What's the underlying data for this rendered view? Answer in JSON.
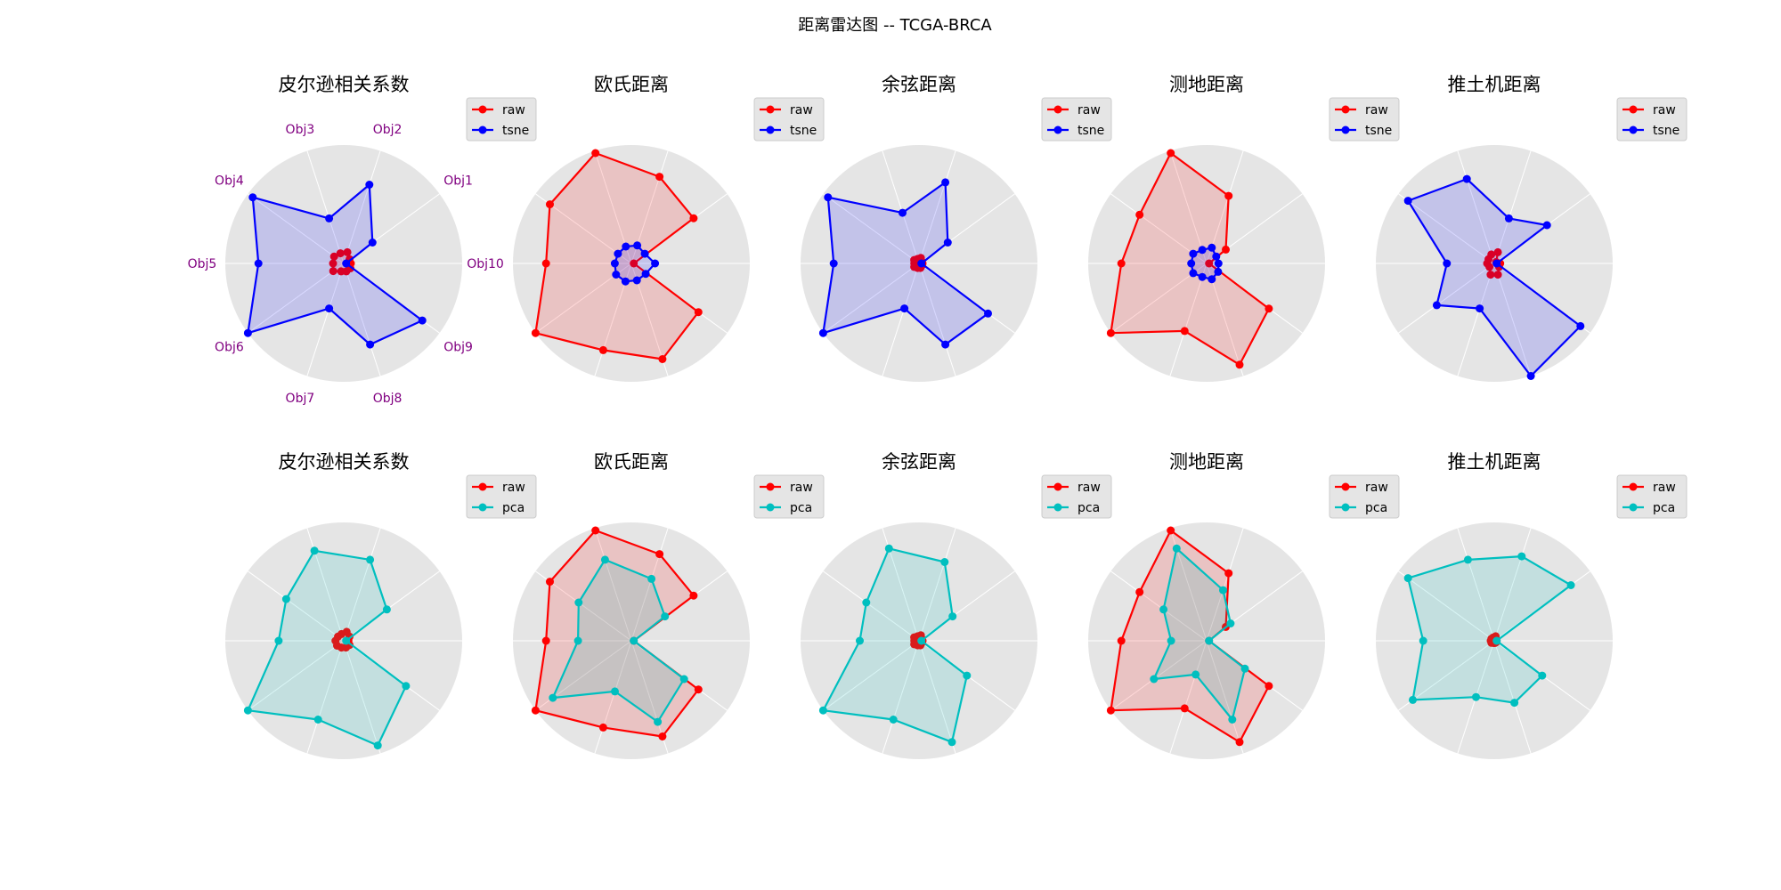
{
  "suptitle": "距离雷达图 -- TCGA-BRCA",
  "categories": [
    "Obj1",
    "Obj2",
    "Obj3",
    "Obj4",
    "Obj5",
    "Obj6",
    "Obj7",
    "Obj8",
    "Obj9",
    "Obj10"
  ],
  "colors": {
    "raw": "#ff0000",
    "tsne": "#0000ff",
    "pca": "#00bfbf",
    "polar_bg": "#e5e5e5",
    "grid": "#ffffff",
    "label": "#800080"
  },
  "chart_data": [
    {
      "type": "radar",
      "title": "皮尔逊相关系数",
      "show_category_labels": true,
      "rmax": 1.0,
      "series": [
        {
          "name": "raw",
          "color": "#ff0000",
          "values": [
            0.06,
            0.1,
            0.09,
            0.1,
            0.09,
            0.11,
            0.07,
            0.07,
            0.07,
            0.06
          ]
        },
        {
          "name": "tsne",
          "color": "#0000ff",
          "values": [
            0.3,
            0.7,
            0.4,
            0.95,
            0.72,
            1.0,
            0.4,
            0.72,
            0.82,
            0.02
          ]
        }
      ]
    },
    {
      "type": "radar",
      "title": "欧氏距离",
      "show_category_labels": false,
      "rmax": 1.0,
      "series": [
        {
          "name": "raw",
          "color": "#ff0000",
          "values": [
            0.65,
            0.77,
            0.98,
            0.85,
            0.72,
            1.0,
            0.77,
            0.85,
            0.7,
            0.02
          ]
        },
        {
          "name": "tsne",
          "color": "#0000ff",
          "values": [
            0.14,
            0.16,
            0.15,
            0.14,
            0.14,
            0.16,
            0.16,
            0.15,
            0.15,
            0.2
          ]
        }
      ]
    },
    {
      "type": "radar",
      "title": "余弦距离",
      "show_category_labels": false,
      "rmax": 1.0,
      "series": [
        {
          "name": "raw",
          "color": "#ff0000",
          "values": [
            0.03,
            0.05,
            0.04,
            0.05,
            0.04,
            0.05,
            0.04,
            0.04,
            0.03,
            0.03
          ]
        },
        {
          "name": "tsne",
          "color": "#0000ff",
          "values": [
            0.3,
            0.72,
            0.45,
            0.95,
            0.72,
            1.0,
            0.4,
            0.72,
            0.72,
            0.02
          ]
        }
      ]
    },
    {
      "type": "radar",
      "title": "测地距离",
      "show_category_labels": false,
      "rmax": 1.0,
      "series": [
        {
          "name": "raw",
          "color": "#ff0000",
          "values": [
            0.2,
            0.6,
            0.98,
            0.7,
            0.72,
            1.0,
            0.6,
            0.9,
            0.65,
            0.02
          ]
        },
        {
          "name": "tsne",
          "color": "#0000ff",
          "values": [
            0.1,
            0.14,
            0.12,
            0.14,
            0.13,
            0.14,
            0.12,
            0.14,
            0.12,
            0.1
          ]
        }
      ]
    },
    {
      "type": "radar",
      "title": "推土机距离",
      "show_category_labels": false,
      "rmax": 1.0,
      "series": [
        {
          "name": "raw",
          "color": "#ff0000",
          "values": [
            0.02,
            0.1,
            0.08,
            0.06,
            0.06,
            0.05,
            0.1,
            0.1,
            0.05,
            0.05
          ]
        },
        {
          "name": "tsne",
          "color": "#0000ff",
          "values": [
            0.55,
            0.4,
            0.75,
            0.9,
            0.4,
            0.6,
            0.4,
            1.0,
            0.9,
            0.02
          ]
        }
      ]
    },
    {
      "type": "radar",
      "title": "皮尔逊相关系数",
      "show_category_labels": false,
      "rmax": 1.0,
      "series": [
        {
          "name": "raw",
          "color": "#ff0000",
          "values": [
            0.06,
            0.08,
            0.06,
            0.06,
            0.07,
            0.07,
            0.06,
            0.06,
            0.06,
            0.04
          ]
        },
        {
          "name": "pca",
          "color": "#00bfbf",
          "values": [
            0.45,
            0.72,
            0.8,
            0.6,
            0.55,
            1.0,
            0.7,
            0.93,
            0.65,
            0.02
          ]
        }
      ]
    },
    {
      "type": "radar",
      "title": "欧氏距离",
      "show_category_labels": false,
      "rmax": 1.0,
      "series": [
        {
          "name": "raw",
          "color": "#ff0000",
          "values": [
            0.65,
            0.77,
            0.98,
            0.85,
            0.72,
            1.0,
            0.77,
            0.85,
            0.7,
            0.02
          ]
        },
        {
          "name": "pca",
          "color": "#00bfbf",
          "values": [
            0.35,
            0.55,
            0.72,
            0.55,
            0.45,
            0.82,
            0.45,
            0.72,
            0.55,
            0.02
          ]
        }
      ]
    },
    {
      "type": "radar",
      "title": "余弦距离",
      "show_category_labels": false,
      "rmax": 1.0,
      "series": [
        {
          "name": "raw",
          "color": "#ff0000",
          "values": [
            0.03,
            0.05,
            0.04,
            0.05,
            0.04,
            0.05,
            0.04,
            0.04,
            0.03,
            0.03
          ]
        },
        {
          "name": "pca",
          "color": "#00bfbf",
          "values": [
            0.35,
            0.7,
            0.82,
            0.55,
            0.5,
            1.0,
            0.7,
            0.9,
            0.5,
            0.02
          ]
        }
      ]
    },
    {
      "type": "radar",
      "title": "测地距离",
      "show_category_labels": false,
      "rmax": 1.0,
      "series": [
        {
          "name": "raw",
          "color": "#ff0000",
          "values": [
            0.2,
            0.6,
            0.98,
            0.7,
            0.72,
            1.0,
            0.6,
            0.9,
            0.65,
            0.02
          ]
        },
        {
          "name": "pca",
          "color": "#00bfbf",
          "values": [
            0.25,
            0.45,
            0.82,
            0.45,
            0.3,
            0.55,
            0.3,
            0.7,
            0.4,
            0.02
          ]
        }
      ]
    },
    {
      "type": "radar",
      "title": "推土机距离",
      "show_category_labels": false,
      "rmax": 1.0,
      "series": [
        {
          "name": "raw",
          "color": "#ff0000",
          "values": [
            0.02,
            0.04,
            0.03,
            0.03,
            0.03,
            0.03,
            0.02,
            0.02,
            0.02,
            0.02
          ]
        },
        {
          "name": "pca",
          "color": "#00bfbf",
          "values": [
            0.8,
            0.75,
            0.72,
            0.9,
            0.6,
            0.85,
            0.5,
            0.55,
            0.5,
            0.02
          ]
        }
      ]
    }
  ]
}
